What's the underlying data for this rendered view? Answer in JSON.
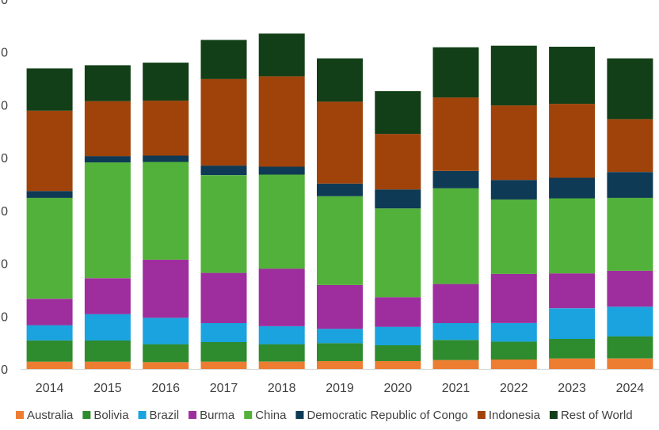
{
  "chart_data": {
    "type": "stacked-bar",
    "title": "",
    "xlabel": "",
    "ylabel": "",
    "categories": [
      "2014",
      "2015",
      "2016",
      "2017",
      "2018",
      "2019",
      "2020",
      "2021",
      "2022",
      "2023",
      "2024"
    ],
    "ylim": [
      0,
      70
    ],
    "yticks": [
      0,
      10,
      20,
      30,
      40,
      50,
      60,
      70
    ],
    "ytick_labels": [
      "0",
      "0",
      "0",
      "0",
      "0",
      "0",
      "0",
      "0"
    ],
    "legend_position": "bottom",
    "grid": false,
    "series": [
      {
        "name": "Australia",
        "color": "#ED7D31",
        "values": [
          1.4,
          1.4,
          1.3,
          1.4,
          1.4,
          1.5,
          1.5,
          1.7,
          1.8,
          2.0,
          2.0
        ]
      },
      {
        "name": "Bolivia",
        "color": "#2E8B2E",
        "values": [
          4.0,
          4.0,
          3.4,
          3.7,
          3.3,
          3.4,
          3.0,
          3.8,
          3.4,
          3.7,
          4.2
        ]
      },
      {
        "name": "Brazil",
        "color": "#1AA3DE",
        "values": [
          2.9,
          5.0,
          5.0,
          3.6,
          3.4,
          2.7,
          3.5,
          3.2,
          3.5,
          5.8,
          5.6
        ]
      },
      {
        "name": "Burma",
        "color": "#9E2E9E",
        "values": [
          5.0,
          6.8,
          11.0,
          9.5,
          10.9,
          8.3,
          5.6,
          7.4,
          9.3,
          6.6,
          6.8
        ]
      },
      {
        "name": "China",
        "color": "#52B13A",
        "values": [
          19.1,
          21.9,
          18.5,
          18.5,
          17.8,
          16.8,
          16.8,
          18.1,
          14.1,
          14.2,
          13.8
        ]
      },
      {
        "name": "Democratic Republic of Congo",
        "color": "#0E3A55",
        "values": [
          1.3,
          1.2,
          1.2,
          1.8,
          1.5,
          2.4,
          3.6,
          3.3,
          3.7,
          3.9,
          4.9
        ]
      },
      {
        "name": "Indonesia",
        "color": "#A0430A",
        "values": [
          15.2,
          10.4,
          10.4,
          16.4,
          17.1,
          15.5,
          10.5,
          13.9,
          14.1,
          14.0,
          10.0
        ]
      },
      {
        "name": "Rest of World",
        "color": "#123F17",
        "values": [
          8.0,
          6.8,
          7.2,
          7.4,
          8.1,
          8.2,
          8.1,
          9.5,
          11.3,
          10.8,
          11.5
        ]
      }
    ]
  }
}
